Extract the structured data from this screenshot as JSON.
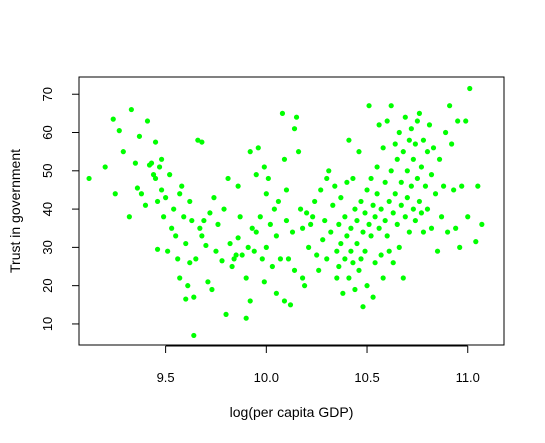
{
  "chart_data": {
    "type": "scatter",
    "title": "",
    "xlabel": "log(per capita GDP)",
    "ylabel": "Trust in government",
    "xlim": [
      9.07,
      11.18
    ],
    "ylim": [
      4.5,
      74.5
    ],
    "xticks": [
      9.5,
      10.0,
      10.5,
      11.0
    ],
    "xtick_labels": [
      "9.5",
      "10.0",
      "10.5",
      "11.0"
    ],
    "yticks": [
      10,
      20,
      30,
      40,
      50,
      60,
      70
    ],
    "ytick_labels": [
      "10",
      "20",
      "30",
      "40",
      "50",
      "60",
      "70"
    ],
    "grid": false,
    "legend": "none",
    "point_color": "#00ff00",
    "points": [
      [
        9.12,
        48
      ],
      [
        9.2,
        51
      ],
      [
        9.24,
        63.5
      ],
      [
        9.25,
        44
      ],
      [
        9.27,
        60.5
      ],
      [
        9.29,
        55
      ],
      [
        9.32,
        38
      ],
      [
        9.33,
        66
      ],
      [
        9.35,
        52
      ],
      [
        9.36,
        45.5
      ],
      [
        9.37,
        59
      ],
      [
        9.38,
        44
      ],
      [
        9.4,
        41
      ],
      [
        9.41,
        63
      ],
      [
        9.42,
        51.5
      ],
      [
        9.43,
        52
      ],
      [
        9.44,
        49
      ],
      [
        9.45,
        57.5
      ],
      [
        9.45,
        48
      ],
      [
        9.46,
        42
      ],
      [
        9.46,
        29.5
      ],
      [
        9.47,
        51
      ],
      [
        9.48,
        53
      ],
      [
        9.48,
        45
      ],
      [
        9.49,
        38
      ],
      [
        9.5,
        43
      ],
      [
        9.51,
        29
      ],
      [
        9.52,
        49
      ],
      [
        9.53,
        35
      ],
      [
        9.54,
        40
      ],
      [
        9.55,
        33
      ],
      [
        9.56,
        27
      ],
      [
        9.57,
        44
      ],
      [
        9.57,
        22
      ],
      [
        9.58,
        46
      ],
      [
        9.59,
        38
      ],
      [
        9.6,
        31
      ],
      [
        9.6,
        16.5
      ],
      [
        9.61,
        20
      ],
      [
        9.62,
        26
      ],
      [
        9.62,
        42
      ],
      [
        9.63,
        37
      ],
      [
        9.64,
        7
      ],
      [
        9.64,
        17
      ],
      [
        9.65,
        27
      ],
      [
        9.66,
        58
      ],
      [
        9.67,
        35
      ],
      [
        9.68,
        33
      ],
      [
        9.68,
        57.5
      ],
      [
        9.69,
        37
      ],
      [
        9.7,
        30.5
      ],
      [
        9.71,
        21
      ],
      [
        9.72,
        39
      ],
      [
        9.73,
        19
      ],
      [
        9.74,
        43
      ],
      [
        9.75,
        29
      ],
      [
        9.76,
        36
      ],
      [
        9.78,
        26.5
      ],
      [
        9.79,
        40
      ],
      [
        9.8,
        12.5
      ],
      [
        9.81,
        48
      ],
      [
        9.82,
        31
      ],
      [
        9.83,
        25
      ],
      [
        9.84,
        27
      ],
      [
        9.85,
        28
      ],
      [
        9.86,
        46
      ],
      [
        9.86,
        32.5
      ],
      [
        9.87,
        38
      ],
      [
        9.88,
        28
      ],
      [
        9.9,
        22
      ],
      [
        9.9,
        11.5
      ],
      [
        9.91,
        30
      ],
      [
        9.92,
        16
      ],
      [
        9.92,
        55
      ],
      [
        9.93,
        35
      ],
      [
        9.94,
        29
      ],
      [
        9.95,
        49
      ],
      [
        9.95,
        34
      ],
      [
        9.96,
        56
      ],
      [
        9.97,
        38
      ],
      [
        9.98,
        27
      ],
      [
        9.99,
        51
      ],
      [
        9.99,
        21
      ],
      [
        10.0,
        44
      ],
      [
        10.0,
        30
      ],
      [
        10.01,
        48
      ],
      [
        10.02,
        36
      ],
      [
        10.03,
        25
      ],
      [
        10.04,
        40
      ],
      [
        10.05,
        33
      ],
      [
        10.05,
        18
      ],
      [
        10.06,
        42
      ],
      [
        10.07,
        27
      ],
      [
        10.08,
        65
      ],
      [
        10.09,
        53
      ],
      [
        10.09,
        16
      ],
      [
        10.1,
        45
      ],
      [
        10.1,
        37
      ],
      [
        10.11,
        27
      ],
      [
        10.12,
        15
      ],
      [
        10.13,
        34
      ],
      [
        10.14,
        61
      ],
      [
        10.14,
        24
      ],
      [
        10.15,
        64
      ],
      [
        10.16,
        55
      ],
      [
        10.17,
        40
      ],
      [
        10.18,
        35
      ],
      [
        10.18,
        22
      ],
      [
        10.19,
        20
      ],
      [
        10.2,
        39
      ],
      [
        10.21,
        30
      ],
      [
        10.22,
        36
      ],
      [
        10.23,
        38
      ],
      [
        10.24,
        42
      ],
      [
        10.25,
        28
      ],
      [
        10.26,
        24
      ],
      [
        10.27,
        45
      ],
      [
        10.28,
        32
      ],
      [
        10.29,
        37
      ],
      [
        10.3,
        27
      ],
      [
        10.3,
        48
      ],
      [
        10.31,
        50
      ],
      [
        10.32,
        34
      ],
      [
        10.33,
        41
      ],
      [
        10.34,
        46
      ],
      [
        10.35,
        29
      ],
      [
        10.35,
        22
      ],
      [
        10.36,
        36
      ],
      [
        10.36,
        25
      ],
      [
        10.37,
        43
      ],
      [
        10.37,
        31
      ],
      [
        10.38,
        18
      ],
      [
        10.39,
        27
      ],
      [
        10.39,
        38
      ],
      [
        10.4,
        47
      ],
      [
        10.4,
        33
      ],
      [
        10.41,
        58
      ],
      [
        10.41,
        22
      ],
      [
        10.42,
        35
      ],
      [
        10.42,
        29
      ],
      [
        10.43,
        48
      ],
      [
        10.43,
        26
      ],
      [
        10.44,
        40
      ],
      [
        10.44,
        19
      ],
      [
        10.45,
        37
      ],
      [
        10.45,
        31
      ],
      [
        10.46,
        55
      ],
      [
        10.46,
        24
      ],
      [
        10.47,
        42
      ],
      [
        10.47,
        27
      ],
      [
        10.48,
        34
      ],
      [
        10.48,
        14.5
      ],
      [
        10.49,
        39
      ],
      [
        10.49,
        29
      ],
      [
        10.5,
        45
      ],
      [
        10.5,
        20
      ],
      [
        10.51,
        67
      ],
      [
        10.51,
        36
      ],
      [
        10.52,
        48
      ],
      [
        10.52,
        33
      ],
      [
        10.53,
        41
      ],
      [
        10.53,
        17
      ],
      [
        10.54,
        38
      ],
      [
        10.54,
        26
      ],
      [
        10.55,
        51
      ],
      [
        10.55,
        44
      ],
      [
        10.56,
        35
      ],
      [
        10.56,
        62
      ],
      [
        10.57,
        28
      ],
      [
        10.57,
        40
      ],
      [
        10.58,
        56
      ],
      [
        10.58,
        22
      ],
      [
        10.59,
        47
      ],
      [
        10.59,
        37
      ],
      [
        10.6,
        63
      ],
      [
        10.6,
        33
      ],
      [
        10.61,
        42
      ],
      [
        10.61,
        29
      ],
      [
        10.62,
        67
      ],
      [
        10.62,
        50
      ],
      [
        10.63,
        39
      ],
      [
        10.63,
        26
      ],
      [
        10.64,
        57
      ],
      [
        10.64,
        44
      ],
      [
        10.65,
        36
      ],
      [
        10.65,
        53
      ],
      [
        10.66,
        60
      ],
      [
        10.66,
        30
      ],
      [
        10.67,
        47
      ],
      [
        10.67,
        41
      ],
      [
        10.68,
        22
      ],
      [
        10.68,
        55
      ],
      [
        10.69,
        64
      ],
      [
        10.69,
        38
      ],
      [
        10.7,
        50
      ],
      [
        10.7,
        43
      ],
      [
        10.71,
        58
      ],
      [
        10.71,
        34
      ],
      [
        10.72,
        61
      ],
      [
        10.72,
        46
      ],
      [
        10.73,
        40
      ],
      [
        10.73,
        53
      ],
      [
        10.74,
        57
      ],
      [
        10.74,
        37
      ],
      [
        10.75,
        48
      ],
      [
        10.75,
        63
      ],
      [
        10.76,
        42
      ],
      [
        10.76,
        65
      ],
      [
        10.77,
        51
      ],
      [
        10.77,
        39
      ],
      [
        10.78,
        58
      ],
      [
        10.78,
        34
      ],
      [
        10.79,
        46
      ],
      [
        10.8,
        55
      ],
      [
        10.8,
        40
      ],
      [
        10.81,
        62
      ],
      [
        10.82,
        49
      ],
      [
        10.82,
        35
      ],
      [
        10.83,
        56
      ],
      [
        10.84,
        44
      ],
      [
        10.85,
        29
      ],
      [
        10.86,
        53
      ],
      [
        10.87,
        38
      ],
      [
        10.88,
        46
      ],
      [
        10.89,
        60
      ],
      [
        10.9,
        34
      ],
      [
        10.91,
        67
      ],
      [
        10.92,
        57
      ],
      [
        10.93,
        45
      ],
      [
        10.94,
        35
      ],
      [
        10.95,
        63
      ],
      [
        10.96,
        30
      ],
      [
        10.97,
        46
      ],
      [
        10.99,
        63
      ],
      [
        11.0,
        38
      ],
      [
        11.01,
        71.5
      ],
      [
        11.04,
        31.5
      ],
      [
        11.05,
        46
      ],
      [
        11.07,
        36
      ]
    ]
  }
}
